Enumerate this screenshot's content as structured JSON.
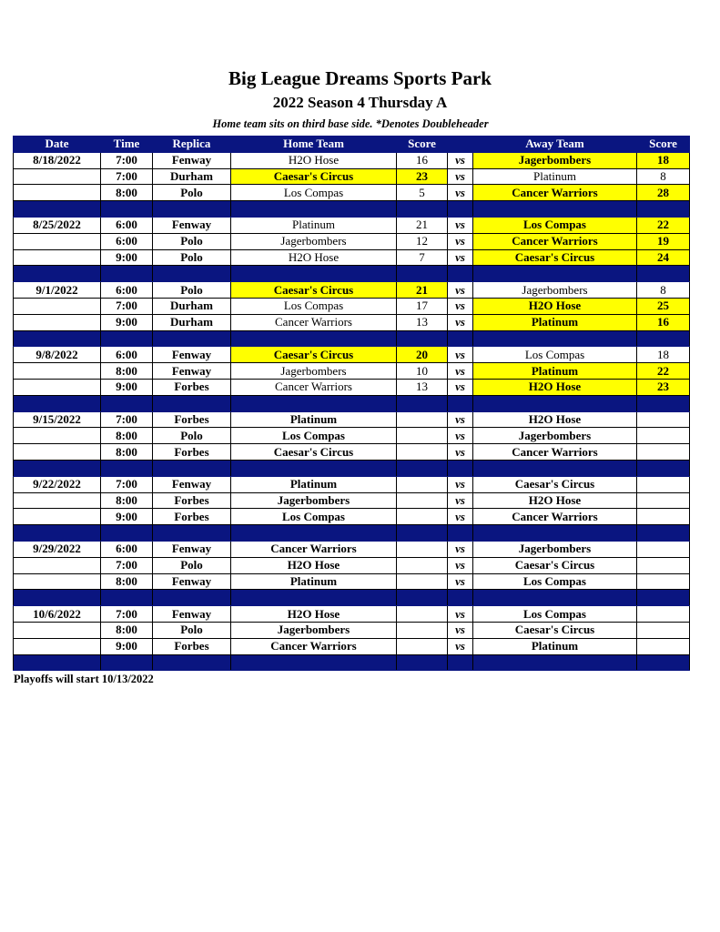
{
  "title": "Big League Dreams Sports Park",
  "subtitle": "2022 Season 4 Thursday A",
  "note": "Home team sits on third base side.  *Denotes Doubleheader",
  "columns": [
    "Date",
    "Time",
    "Replica",
    "Home Team",
    "Score",
    "",
    "Away Team",
    "Score"
  ],
  "vs_label": "vs",
  "colors": {
    "header": "#0a1580",
    "winner_highlight": "#ffff00"
  },
  "weeks": [
    {
      "date": "8/18/2022",
      "games": [
        {
          "time": "7:00",
          "field": "Fenway",
          "home": "H2O Hose",
          "home_score": "16",
          "away": "Jagerbombers",
          "away_score": "18",
          "winner": "away"
        },
        {
          "time": "7:00",
          "field": "Durham",
          "home": "Caesar's Circus",
          "home_score": "23",
          "away": "Platinum",
          "away_score": "8",
          "winner": "home"
        },
        {
          "time": "8:00",
          "field": "Polo",
          "home": "Los Compas",
          "home_score": "5",
          "away": "Cancer Warriors",
          "away_score": "28",
          "winner": "away"
        }
      ]
    },
    {
      "date": "8/25/2022",
      "games": [
        {
          "time": "6:00",
          "field": "Fenway",
          "home": "Platinum",
          "home_score": "21",
          "away": "Los Compas",
          "away_score": "22",
          "winner": "away"
        },
        {
          "time": "6:00",
          "field": "Polo",
          "home": "Jagerbombers",
          "home_score": "12",
          "away": "Cancer Warriors",
          "away_score": "19",
          "winner": "away"
        },
        {
          "time": "9:00",
          "field": "Polo",
          "home": "H2O Hose",
          "home_score": "7",
          "away": "Caesar's Circus",
          "away_score": "24",
          "winner": "away"
        }
      ]
    },
    {
      "date": "9/1/2022",
      "games": [
        {
          "time": "6:00",
          "field": "Polo",
          "home": "Caesar's Circus",
          "home_score": "21",
          "away": "Jagerbombers",
          "away_score": "8",
          "winner": "home"
        },
        {
          "time": "7:00",
          "field": "Durham",
          "home": "Los Compas",
          "home_score": "17",
          "away": "H2O Hose",
          "away_score": "25",
          "winner": "away"
        },
        {
          "time": "9:00",
          "field": "Durham",
          "home": "Cancer Warriors",
          "home_score": "13",
          "away": "Platinum",
          "away_score": "16",
          "winner": "away"
        }
      ]
    },
    {
      "date": "9/8/2022",
      "games": [
        {
          "time": "6:00",
          "field": "Fenway",
          "home": "Caesar's Circus",
          "home_score": "20",
          "away": "Los Compas",
          "away_score": "18",
          "winner": "home"
        },
        {
          "time": "8:00",
          "field": "Fenway",
          "home": "Jagerbombers",
          "home_score": "10",
          "away": "Platinum",
          "away_score": "22",
          "winner": "away"
        },
        {
          "time": "9:00",
          "field": "Forbes",
          "home": "Cancer Warriors",
          "home_score": "13",
          "away": "H2O Hose",
          "away_score": "23",
          "winner": "away"
        }
      ]
    },
    {
      "date": "9/15/2022",
      "games": [
        {
          "time": "7:00",
          "field": "Forbes",
          "home": "Platinum",
          "home_score": "",
          "away": "H2O Hose",
          "away_score": "",
          "winner": ""
        },
        {
          "time": "8:00",
          "field": "Polo",
          "home": "Los Compas",
          "home_score": "",
          "away": "Jagerbombers",
          "away_score": "",
          "winner": ""
        },
        {
          "time": "8:00",
          "field": "Forbes",
          "home": "Caesar's Circus",
          "home_score": "",
          "away": "Cancer Warriors",
          "away_score": "",
          "winner": ""
        }
      ]
    },
    {
      "date": "9/22/2022",
      "games": [
        {
          "time": "7:00",
          "field": "Fenway",
          "home": "Platinum",
          "home_score": "",
          "away": "Caesar's Circus",
          "away_score": "",
          "winner": ""
        },
        {
          "time": "8:00",
          "field": "Forbes",
          "home": "Jagerbombers",
          "home_score": "",
          "away": "H2O Hose",
          "away_score": "",
          "winner": ""
        },
        {
          "time": "9:00",
          "field": "Forbes",
          "home": "Los Compas",
          "home_score": "",
          "away": "Cancer Warriors",
          "away_score": "",
          "winner": ""
        }
      ]
    },
    {
      "date": "9/29/2022",
      "games": [
        {
          "time": "6:00",
          "field": "Fenway",
          "home": "Cancer Warriors",
          "home_score": "",
          "away": "Jagerbombers",
          "away_score": "",
          "winner": ""
        },
        {
          "time": "7:00",
          "field": "Polo",
          "home": "H2O Hose",
          "home_score": "",
          "away": "Caesar's Circus",
          "away_score": "",
          "winner": ""
        },
        {
          "time": "8:00",
          "field": "Fenway",
          "home": "Platinum",
          "home_score": "",
          "away": "Los Compas",
          "away_score": "",
          "winner": ""
        }
      ]
    },
    {
      "date": "10/6/2022",
      "games": [
        {
          "time": "7:00",
          "field": "Fenway",
          "home": "H2O Hose",
          "home_score": "",
          "away": "Los Compas",
          "away_score": "",
          "winner": ""
        },
        {
          "time": "8:00",
          "field": "Polo",
          "home": "Jagerbombers",
          "home_score": "",
          "away": "Caesar's Circus",
          "away_score": "",
          "winner": ""
        },
        {
          "time": "9:00",
          "field": "Forbes",
          "home": "Cancer Warriors",
          "home_score": "",
          "away": "Platinum",
          "away_score": "",
          "winner": ""
        }
      ]
    }
  ],
  "footer": "Playoffs will start 10/13/2022"
}
